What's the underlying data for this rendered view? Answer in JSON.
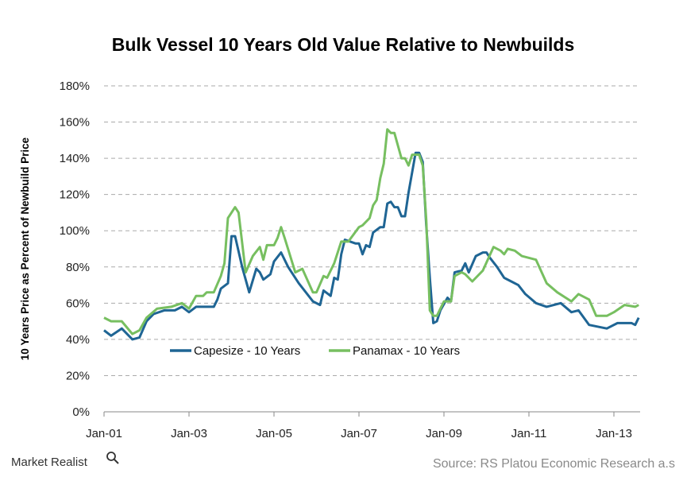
{
  "chart_data": {
    "type": "line",
    "title": "Bulk Vessel 10 Years Old Value Relative to Newbuilds",
    "xlabel": "",
    "ylabel": "10 Years Price as Percent of Newbuild Price",
    "ylim": [
      0,
      180
    ],
    "xlim": [
      "2001-01",
      "2013-08"
    ],
    "yticks": [
      "0%",
      "20%",
      "40%",
      "60%",
      "80%",
      "100%",
      "120%",
      "140%",
      "160%",
      "180%"
    ],
    "xticks": [
      "Jan-01",
      "Jan-03",
      "Jan-05",
      "Jan-07",
      "Jan-09",
      "Jan-11",
      "Jan-13"
    ],
    "grid": "horizontal dashed",
    "legend_position": "bottom-left inside plot",
    "series": [
      {
        "name": "Capesize - 10 Years",
        "color": "#1f6594",
        "points": [
          [
            "2001-01",
            45
          ],
          [
            "2001-03",
            42
          ],
          [
            "2001-06",
            46
          ],
          [
            "2001-09",
            40
          ],
          [
            "2001-11",
            41
          ],
          [
            "2002-01",
            50
          ],
          [
            "2002-03",
            54
          ],
          [
            "2002-06",
            56
          ],
          [
            "2002-09",
            56
          ],
          [
            "2002-11",
            58
          ],
          [
            "2003-01",
            55
          ],
          [
            "2003-03",
            58
          ],
          [
            "2003-08",
            58
          ],
          [
            "2003-09",
            62
          ],
          [
            "2003-10",
            68
          ],
          [
            "2003-12",
            71
          ],
          [
            "2004-01",
            97
          ],
          [
            "2004-02",
            97
          ],
          [
            "2004-04",
            80
          ],
          [
            "2004-06",
            66
          ],
          [
            "2004-08",
            79
          ],
          [
            "2004-09",
            77
          ],
          [
            "2004-10",
            73
          ],
          [
            "2004-12",
            76
          ],
          [
            "2005-01",
            83
          ],
          [
            "2005-03",
            88
          ],
          [
            "2005-05",
            80
          ],
          [
            "2005-08",
            71
          ],
          [
            "2005-12",
            61
          ],
          [
            "2006-02",
            59
          ],
          [
            "2006-03",
            67
          ],
          [
            "2006-05",
            64
          ],
          [
            "2006-06",
            74
          ],
          [
            "2006-07",
            73
          ],
          [
            "2006-08",
            87
          ],
          [
            "2006-09",
            95
          ],
          [
            "2006-12",
            93
          ],
          [
            "2007-01",
            93
          ],
          [
            "2007-02",
            87
          ],
          [
            "2007-03",
            92
          ],
          [
            "2007-04",
            91
          ],
          [
            "2007-05",
            99
          ],
          [
            "2007-07",
            102
          ],
          [
            "2007-08",
            102
          ],
          [
            "2007-09",
            115
          ],
          [
            "2007-10",
            116
          ],
          [
            "2007-11",
            113
          ],
          [
            "2007-12",
            113
          ],
          [
            "2008-01",
            108
          ],
          [
            "2008-02",
            108
          ],
          [
            "2008-03",
            121
          ],
          [
            "2008-05",
            143
          ],
          [
            "2008-06",
            143
          ],
          [
            "2008-07",
            138
          ],
          [
            "2008-08",
            103
          ],
          [
            "2008-09",
            74
          ],
          [
            "2008-10",
            49
          ],
          [
            "2008-11",
            50
          ],
          [
            "2008-12",
            56
          ],
          [
            "2009-02",
            63
          ],
          [
            "2009-03",
            61
          ],
          [
            "2009-04",
            77
          ],
          [
            "2009-06",
            78
          ],
          [
            "2009-07",
            82
          ],
          [
            "2009-08",
            77
          ],
          [
            "2009-10",
            86
          ],
          [
            "2009-12",
            88
          ],
          [
            "2010-01",
            88
          ],
          [
            "2010-02",
            85
          ],
          [
            "2010-04",
            80
          ],
          [
            "2010-06",
            74
          ],
          [
            "2010-08",
            72
          ],
          [
            "2010-10",
            70
          ],
          [
            "2010-12",
            65
          ],
          [
            "2011-03",
            60
          ],
          [
            "2011-06",
            58
          ],
          [
            "2011-10",
            60
          ],
          [
            "2012-01",
            55
          ],
          [
            "2012-03",
            56
          ],
          [
            "2012-06",
            48
          ],
          [
            "2012-11",
            46
          ],
          [
            "2013-02",
            49
          ],
          [
            "2013-06",
            49
          ],
          [
            "2013-07",
            48
          ],
          [
            "2013-08",
            52
          ]
        ]
      },
      {
        "name": "Panamax - 10 Years",
        "color": "#77bf60",
        "points": [
          [
            "2001-01",
            52
          ],
          [
            "2001-03",
            50
          ],
          [
            "2001-06",
            50
          ],
          [
            "2001-09",
            43
          ],
          [
            "2001-11",
            45
          ],
          [
            "2002-01",
            52
          ],
          [
            "2002-04",
            57
          ],
          [
            "2002-08",
            58
          ],
          [
            "2002-11",
            60
          ],
          [
            "2003-01",
            57
          ],
          [
            "2003-03",
            64
          ],
          [
            "2003-05",
            64
          ],
          [
            "2003-06",
            66
          ],
          [
            "2003-08",
            66
          ],
          [
            "2003-10",
            75
          ],
          [
            "2003-11",
            82
          ],
          [
            "2003-12",
            107
          ],
          [
            "2004-02",
            113
          ],
          [
            "2004-03",
            110
          ],
          [
            "2004-05",
            77
          ],
          [
            "2004-07",
            86
          ],
          [
            "2004-09",
            91
          ],
          [
            "2004-10",
            84
          ],
          [
            "2004-11",
            92
          ],
          [
            "2005-01",
            92
          ],
          [
            "2005-02",
            96
          ],
          [
            "2005-03",
            102
          ],
          [
            "2005-04",
            96
          ],
          [
            "2005-07",
            77
          ],
          [
            "2005-09",
            79
          ],
          [
            "2005-12",
            66
          ],
          [
            "2006-01",
            66
          ],
          [
            "2006-03",
            75
          ],
          [
            "2006-04",
            74
          ],
          [
            "2006-06",
            82
          ],
          [
            "2006-08",
            94
          ],
          [
            "2006-10",
            94
          ],
          [
            "2007-01",
            102
          ],
          [
            "2007-02",
            103
          ],
          [
            "2007-04",
            107
          ],
          [
            "2007-05",
            114
          ],
          [
            "2007-06",
            117
          ],
          [
            "2007-07",
            129
          ],
          [
            "2007-08",
            137
          ],
          [
            "2007-09",
            156
          ],
          [
            "2007-10",
            154
          ],
          [
            "2007-11",
            154
          ],
          [
            "2008-01",
            140
          ],
          [
            "2008-02",
            140
          ],
          [
            "2008-03",
            136
          ],
          [
            "2008-04",
            142
          ],
          [
            "2008-06",
            142
          ],
          [
            "2008-07",
            136
          ],
          [
            "2008-08",
            106
          ],
          [
            "2008-09",
            56
          ],
          [
            "2008-10",
            53
          ],
          [
            "2008-11",
            53
          ],
          [
            "2009-01",
            61
          ],
          [
            "2009-03",
            61
          ],
          [
            "2009-04",
            75
          ],
          [
            "2009-06",
            77
          ],
          [
            "2009-07",
            76
          ],
          [
            "2009-09",
            72
          ],
          [
            "2009-12",
            78
          ],
          [
            "2010-03",
            91
          ],
          [
            "2010-05",
            89
          ],
          [
            "2010-06",
            87
          ],
          [
            "2010-07",
            90
          ],
          [
            "2010-09",
            89
          ],
          [
            "2010-11",
            86
          ],
          [
            "2011-03",
            84
          ],
          [
            "2011-06",
            71
          ],
          [
            "2011-09",
            66
          ],
          [
            "2012-01",
            61
          ],
          [
            "2012-03",
            65
          ],
          [
            "2012-06",
            62
          ],
          [
            "2012-08",
            53
          ],
          [
            "2012-11",
            53
          ],
          [
            "2013-01",
            55
          ],
          [
            "2013-04",
            59
          ],
          [
            "2013-07",
            58
          ],
          [
            "2013-08",
            59
          ]
        ]
      }
    ]
  },
  "footer": {
    "logo_text": "Market Realist",
    "source": "Source: RS Platou Economic Research a.s"
  }
}
